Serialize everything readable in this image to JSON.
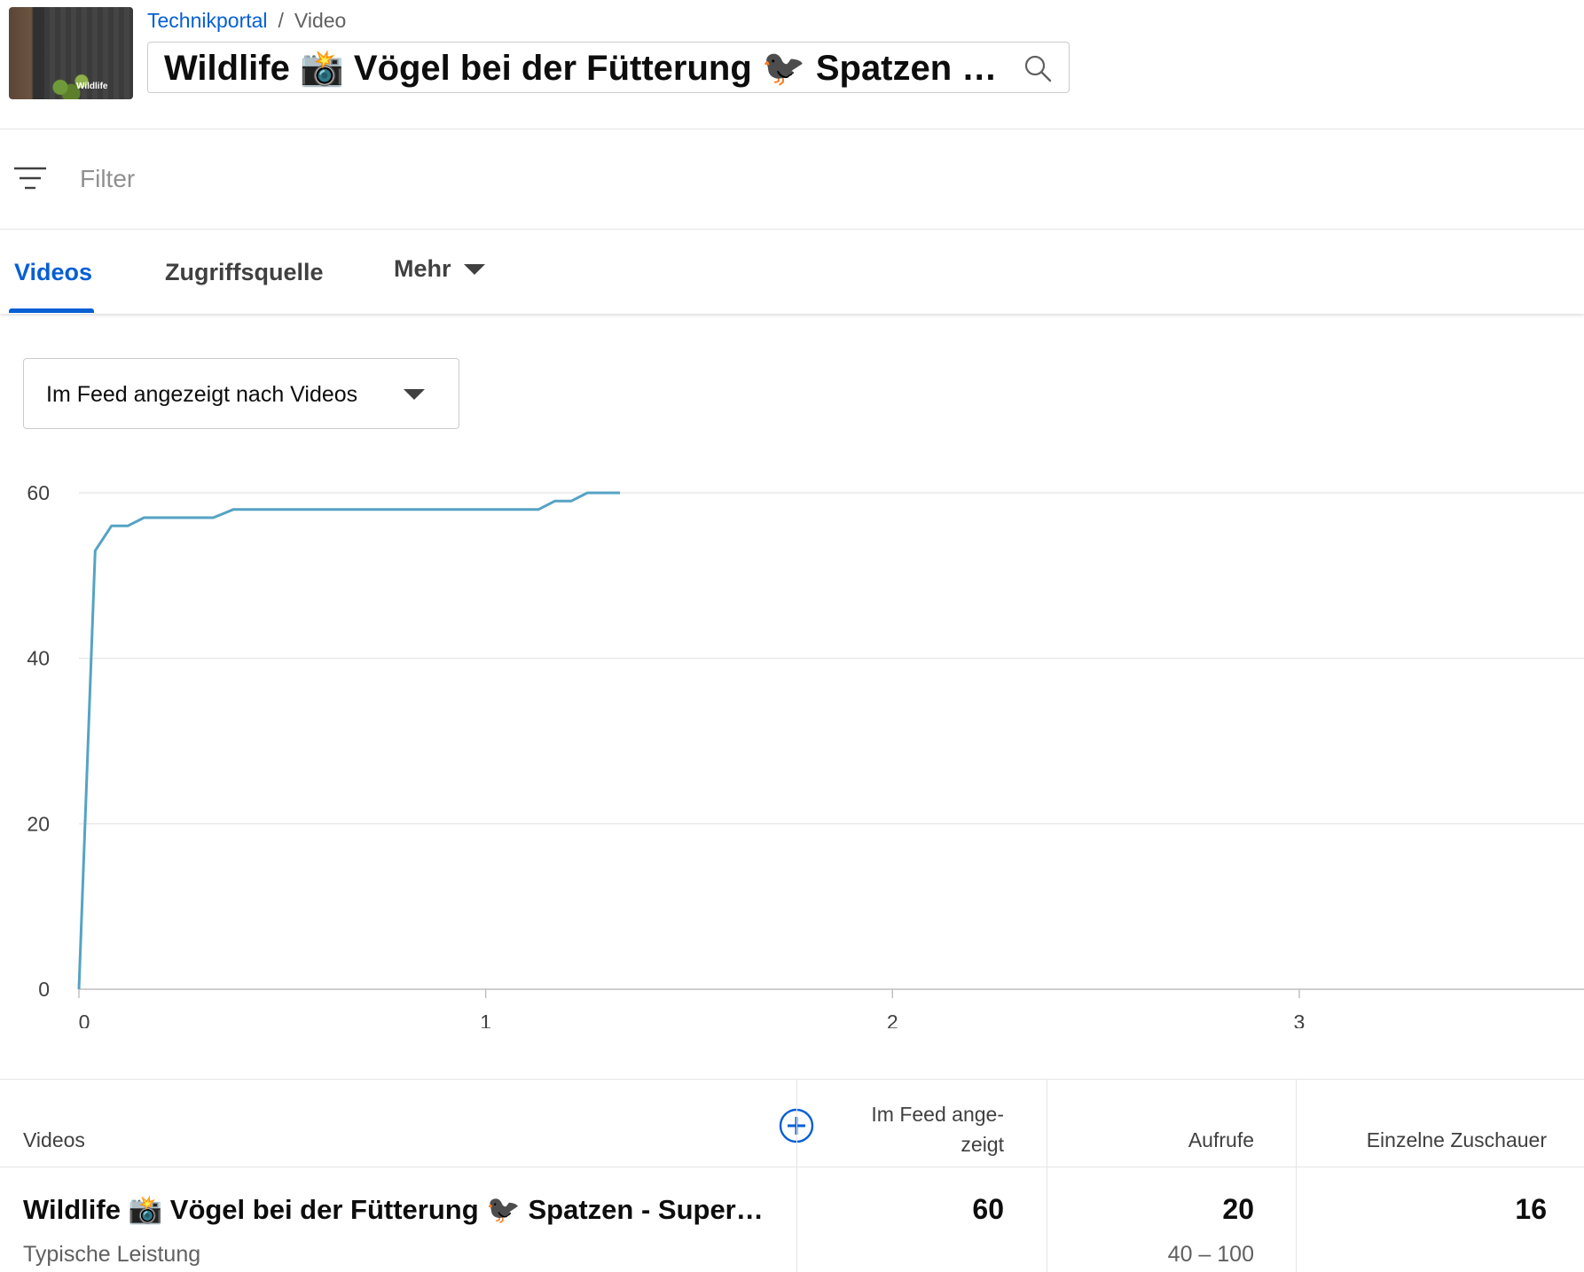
{
  "breadcrumb": {
    "channel": "Technikportal",
    "separator": "/",
    "current": "Video"
  },
  "search": {
    "value": "Wildlife 📸 Vögel bei der Fütterung 🐦‍⬛ Spatzen - Superzeitlupe"
  },
  "thumbnail": {
    "label": "Wildlife"
  },
  "filter": {
    "placeholder": "Filter"
  },
  "tabs": [
    {
      "label": "Videos",
      "active": true
    },
    {
      "label": "Zugriffsquelle",
      "active": false
    },
    {
      "label": "Mehr",
      "active": false
    }
  ],
  "metric_select": {
    "value": "Im Feed angezeigt nach Videos"
  },
  "chart_data": {
    "type": "line",
    "xlabel": "",
    "ylabel": "",
    "xlim": [
      0,
      3.7
    ],
    "ylim": [
      0,
      60
    ],
    "x_ticks": [
      "0",
      "1",
      "2",
      "3"
    ],
    "y_ticks": [
      "0",
      "20",
      "40",
      "60"
    ],
    "grid": true,
    "series": [
      {
        "color": "#55a3c4",
        "x": [
          0,
          0.04,
          0.08,
          0.12,
          0.16,
          0.2,
          0.33,
          0.38,
          0.5,
          1.0,
          1.13,
          1.17,
          1.21,
          1.25,
          1.29,
          1.33
        ],
        "values": [
          0,
          53,
          56,
          56,
          57,
          57,
          57,
          58,
          58,
          58,
          58,
          59,
          59,
          60,
          60,
          60
        ]
      }
    ]
  },
  "table": {
    "headers": {
      "videos": "Videos",
      "impressions": "Im Feed ange-\nzeigt",
      "impressions_line1": "Im Feed ange-",
      "impressions_line2": "zeigt",
      "views": "Aufrufe",
      "unique_viewers": "Einzelne Zuschauer"
    },
    "row": {
      "title": "Wildlife 📸 Vögel bei der Fütterung 🐦‍⬛ Spatzen - Superzeitlupe",
      "subtitle": "Typische Leistung",
      "impressions": "60",
      "views": "20",
      "views_typical": "40 – 100",
      "unique_viewers": "16"
    }
  },
  "colors": {
    "accent": "#065fd4",
    "line": "#55a3c4"
  }
}
